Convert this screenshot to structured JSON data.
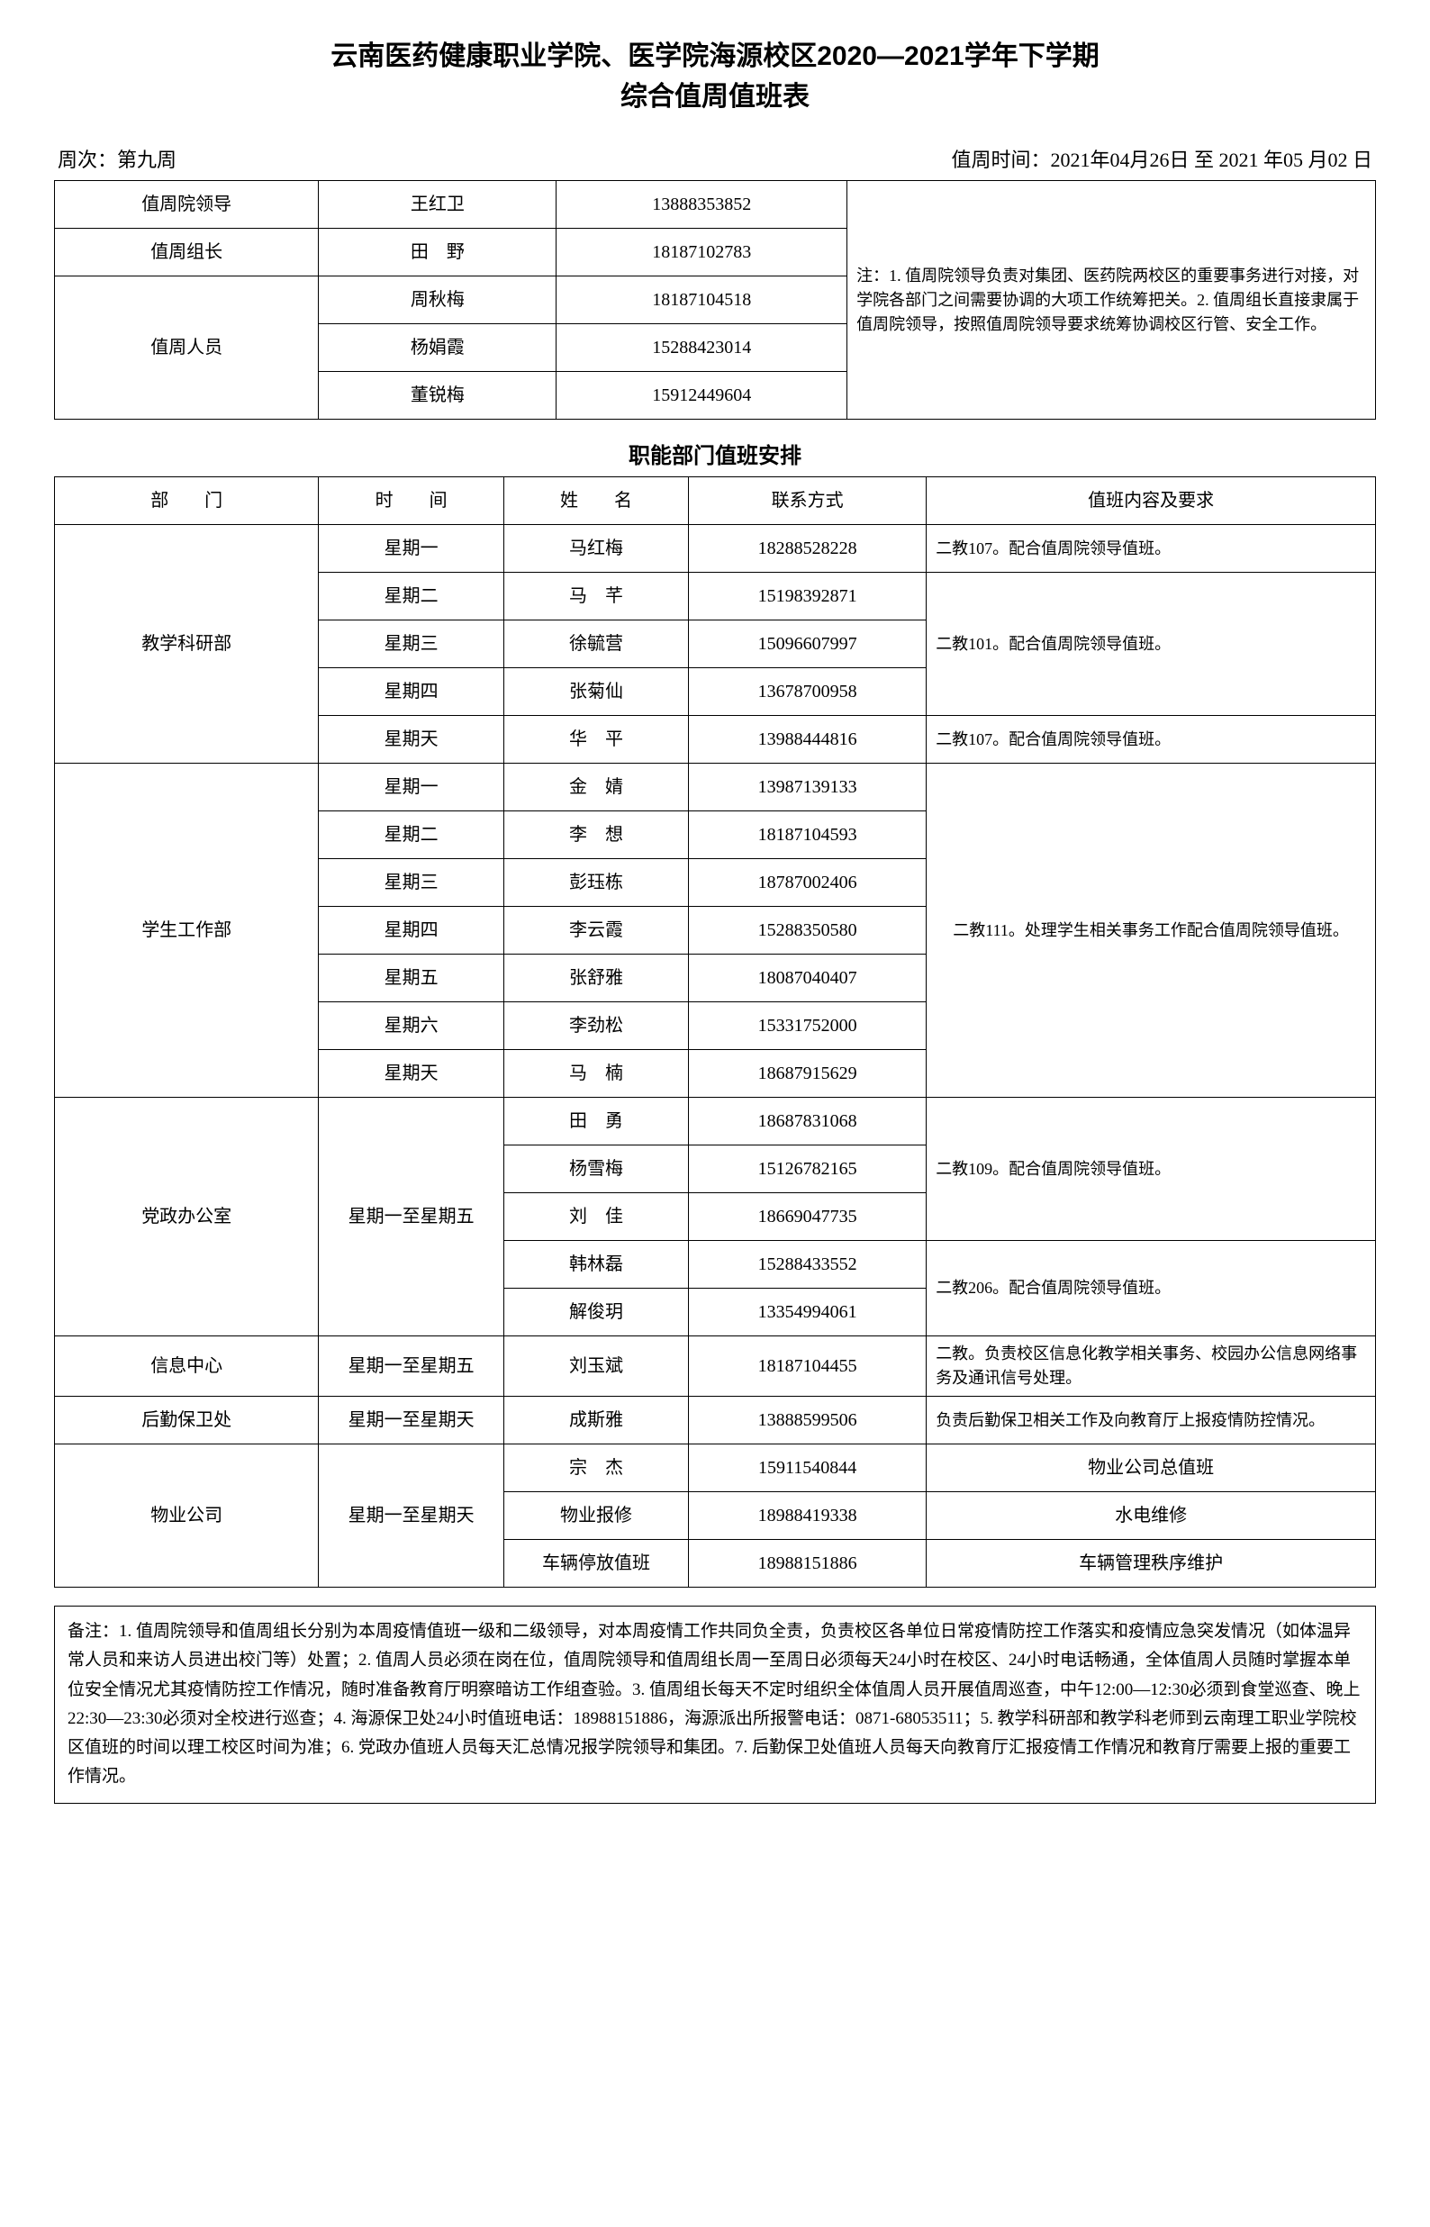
{
  "title_line1": "云南医药健康职业学院、医学院海源校区2020—2021学年下学期",
  "title_line2": "综合值周值班表",
  "week_label": "周次：第九周",
  "period_label": "值周时间：2021年04月26日 至 2021 年05 月02 日",
  "top_table": {
    "rows": [
      {
        "role": "值周院领导",
        "name": "王红卫",
        "phone": "13888353852"
      },
      {
        "role": "值周组长",
        "name": "田　野",
        "phone": "18187102783"
      }
    ],
    "staff_role": "值周人员",
    "staff": [
      {
        "name": "周秋梅",
        "phone": "18187104518"
      },
      {
        "name": "杨娟霞",
        "phone": "15288423014"
      },
      {
        "name": "董锐梅",
        "phone": "15912449604"
      }
    ],
    "note": "注：1. 值周院领导负责对集团、医药院两校区的重要事务进行对接，对学院各部门之间需要协调的大项工作统筹把关。2. 值周组长直接隶属于值周院领导，按照值周院领导要求统筹协调校区行管、安全工作。"
  },
  "dept_title": "职能部门值班安排",
  "dept_headers": {
    "dept": "部　　门",
    "time": "时　　间",
    "name": "姓　　名",
    "phone": "联系方式",
    "req": "值班内容及要求"
  },
  "jxky": {
    "dept": "教学科研部",
    "rows": [
      {
        "time": "星期一",
        "name": "马红梅",
        "phone": "18288528228",
        "req": "二教107。配合值周院领导值班。"
      },
      {
        "time": "星期二",
        "name": "马　芊",
        "phone": "15198392871"
      },
      {
        "time": "星期三",
        "name": "徐毓营",
        "phone": "15096607997"
      },
      {
        "time": "星期四",
        "name": "张菊仙",
        "phone": "13678700958"
      },
      {
        "time": "星期天",
        "name": "华　平",
        "phone": "13988444816",
        "req": "二教107。配合值周院领导值班。"
      }
    ],
    "req_merged": "二教101。配合值周院领导值班。"
  },
  "xsgz": {
    "dept": "学生工作部",
    "rows": [
      {
        "time": "星期一",
        "name": "金　婧",
        "phone": "13987139133"
      },
      {
        "time": "星期二",
        "name": "李　想",
        "phone": "18187104593"
      },
      {
        "time": "星期三",
        "name": "彭珏栋",
        "phone": "18787002406"
      },
      {
        "time": "星期四",
        "name": "李云霞",
        "phone": "15288350580"
      },
      {
        "time": "星期五",
        "name": "张舒雅",
        "phone": "18087040407"
      },
      {
        "time": "星期六",
        "name": "李劲松",
        "phone": "15331752000"
      },
      {
        "time": "星期天",
        "name": "马　楠",
        "phone": "18687915629"
      }
    ],
    "req": "二教111。处理学生相关事务工作配合值周院领导值班。"
  },
  "dzbgs": {
    "dept": "党政办公室",
    "time": "星期一至星期五",
    "rows": [
      {
        "name": "田　勇",
        "phone": "18687831068"
      },
      {
        "name": "杨雪梅",
        "phone": "15126782165"
      },
      {
        "name": "刘　佳",
        "phone": "18669047735"
      },
      {
        "name": "韩林磊",
        "phone": "15288433552"
      },
      {
        "name": "解俊玥",
        "phone": "13354994061"
      }
    ],
    "req1": "二教109。配合值周院领导值班。",
    "req2": "二教206。配合值周院领导值班。"
  },
  "xxzx": {
    "dept": "信息中心",
    "time": "星期一至星期五",
    "name": "刘玉斌",
    "phone": "18187104455",
    "req": "二教。负责校区信息化教学相关事务、校园办公信息网络事务及通讯信号处理。"
  },
  "hqbw": {
    "dept": "后勤保卫处",
    "time": "星期一至星期天",
    "name": "成斯雅",
    "phone": "13888599506",
    "req": "负责后勤保卫相关工作及向教育厅上报疫情防控情况。"
  },
  "wygs": {
    "dept": "物业公司",
    "time": "星期一至星期天",
    "rows": [
      {
        "name": "宗　杰",
        "phone": "15911540844",
        "req": "物业公司总值班"
      },
      {
        "name": "物业报修",
        "phone": "18988419338",
        "req": "水电维修"
      },
      {
        "name": "车辆停放值班",
        "phone": "18988151886",
        "req": "车辆管理秩序维护"
      }
    ]
  },
  "remarks": "备注：1. 值周院领导和值周组长分别为本周疫情值班一级和二级领导，对本周疫情工作共同负全责，负责校区各单位日常疫情防控工作落实和疫情应急突发情况（如体温异常人员和来访人员进出校门等）处置；2. 值周人员必须在岗在位，值周院领导和值周组长周一至周日必须每天24小时在校区、24小时电话畅通，全体值周人员随时掌握本单位安全情况尤其疫情防控工作情况，随时准备教育厅明察暗访工作组查验。3. 值周组长每天不定时组织全体值周人员开展值周巡查，中午12:00—12:30必须到食堂巡查、晚上22:30—23:30必须对全校进行巡查；4. 海源保卫处24小时值班电话：18988151886，海源派出所报警电话：0871-68053511；5. 教学科研部和教学科老师到云南理工职业学院校区值班的时间以理工校区时间为准；6. 党政办值班人员每天汇总情况报学院领导和集团。7. 后勤保卫处值班人员每天向教育厅汇报疫情工作情况和教育厅需要上报的重要工作情况。"
}
